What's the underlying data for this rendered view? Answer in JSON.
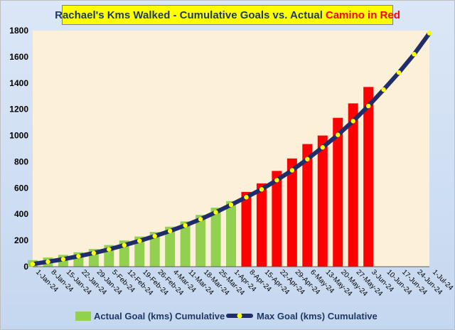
{
  "chart_data": {
    "type": "bar",
    "title": "Rachael's Kms Walked - Cumulative Goals vs. Actual",
    "title_accent": "Camino in Red",
    "categories": [
      "1-Jan-24",
      "8-Jan-24",
      "15-Jan-24",
      "22-Jan-24",
      "29-Jan-24",
      "5-Feb-24",
      "12-Feb-24",
      "19-Feb-24",
      "26-Feb-24",
      "4-Mar-24",
      "11-Mar-24",
      "18-Mar-24",
      "25-Mar-24",
      "1-Apr-24",
      "8-Apr-24",
      "15-Apr-24",
      "22-Apr-24",
      "29-Apr-24",
      "6-May-24",
      "13-May-24",
      "20-May-24",
      "27-May-24",
      "3-Jun-24",
      "10-Jun-24",
      "17-Jun-24",
      "24-Jun-24",
      "1-Jul-24"
    ],
    "ylim": [
      0,
      1800
    ],
    "yticks": [
      0,
      200,
      400,
      600,
      800,
      1000,
      1200,
      1400,
      1600,
      1800
    ],
    "grid": false,
    "legend_position": "bottom",
    "series": [
      {
        "name": "Actual Goal (kms) Cumulative",
        "type": "bar",
        "values": [
          50,
          70,
          90,
          110,
          135,
          165,
          200,
          230,
          265,
          305,
          345,
          395,
          450,
          500,
          570,
          635,
          730,
          825,
          935,
          1000,
          1135,
          1245,
          1370,
          null,
          null,
          null,
          null
        ],
        "camino_start_index": 14
      },
      {
        "name": "Max Goal (kms) Cumulative",
        "type": "line",
        "values": [
          20,
          38,
          57,
          80,
          104,
          132,
          164,
          197,
          233,
          272,
          315,
          362,
          415,
          472,
          530,
          590,
          660,
          735,
          820,
          910,
          1005,
          1110,
          1225,
          1350,
          1480,
          1620,
          1780
        ]
      }
    ],
    "colors": {
      "actual_bar": "#92d050",
      "camino_bar": "#ff0000",
      "max_line": "#1f2d6b",
      "max_marker": "#ffff00",
      "plot_bg": "#fdf0d8"
    }
  }
}
